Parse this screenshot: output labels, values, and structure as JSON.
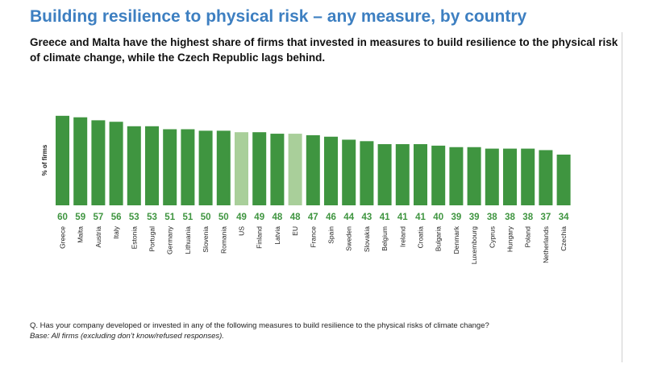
{
  "title": "Building resilience to physical risk – any measure, by country",
  "subtitle": "Greece and Malta have the highest share of firms that invested in measures to build resilience to the physical risk of climate change, while the Czech Republic lags behind.",
  "colors": {
    "bar": "#3f9540",
    "highlight": "#a9cf9a",
    "value_label": "#3f9540",
    "title": "#3d7fc1"
  },
  "chart_data": {
    "type": "bar",
    "ylabel": "% of firms",
    "ylim": [
      0,
      60
    ],
    "grid": false,
    "categories": [
      "Greece",
      "Malta",
      "Austria",
      "Italy",
      "Estonia",
      "Portugal",
      "Germany",
      "Lithuania",
      "Slovenia",
      "Romania",
      "US",
      "Finland",
      "Latvia",
      "EU",
      "France",
      "Spain",
      "Sweden",
      "Slovakia",
      "Belgium",
      "Ireland",
      "Croatia",
      "Bulgaria",
      "Denmark",
      "Luxembourg",
      "Cyprus",
      "Hungary",
      "Poland",
      "Netherlands",
      "Czechia"
    ],
    "values": [
      60,
      59,
      57,
      56,
      53,
      53,
      51,
      51,
      50,
      50,
      49,
      49,
      48,
      48,
      47,
      46,
      44,
      43,
      41,
      41,
      41,
      40,
      39,
      39,
      38,
      38,
      38,
      37,
      34
    ],
    "value_labels": [
      "60",
      "59",
      "57",
      "56",
      "53",
      "53",
      "51",
      "51",
      "50",
      "50",
      "49",
      "49",
      "48",
      "48",
      "47",
      "46",
      "44",
      "43",
      "41",
      "41",
      "41",
      "40",
      "39",
      "39",
      "38",
      "38",
      "38",
      "37",
      "34"
    ],
    "highlighted": [
      "US",
      "EU"
    ]
  },
  "footnote": {
    "question": "Q. Has your company developed or invested in any of the following measures to build resilience to the physical risks of climate change?",
    "base": "Base: All firms (excluding don’t know/refused responses)."
  }
}
